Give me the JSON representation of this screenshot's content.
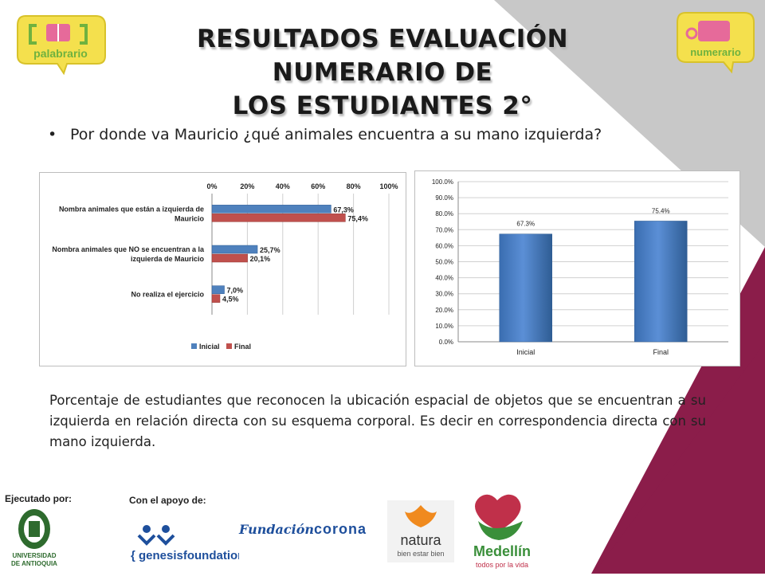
{
  "header": {
    "title_line1": "RESULTADOS EVALUACIÓN NUMERARIO DE",
    "title_line2": "LOS ESTUDIANTES 2°",
    "logo_left_text": "palabrario",
    "logo_right_text": "numerario"
  },
  "bullet": {
    "symbol": "•",
    "text": "Por donde va Mauricio ¿qué animales encuentra a su mano izquierda?"
  },
  "description": "Porcentaje de estudiantes que reconocen la ubicación espacial de objetos que se encuentran a su izquierda en relación directa con su esquema corporal. Es decir en correspondencia directa con su mano izquierda.",
  "footer": {
    "executed_by": "Ejecutado por:",
    "support_by": "Con el apoyo de:",
    "udea_line1": "UNIVERSIDAD",
    "udea_line2": "DE ANTIOQUIA",
    "genesis": "{ genesisfoundation }",
    "fundacion": "Fundación",
    "corona": "corona",
    "natura": "natura",
    "natura_sub": "bien estar bien",
    "medellin": "Medellín",
    "medellin_sub": "todos por la vida"
  },
  "colors": {
    "series_inicial": "#4f81bd",
    "series_final": "#c0504d",
    "bg_gray": "#c8c8c8",
    "bg_maroon": "#8b1d4a"
  },
  "chart_data": [
    {
      "type": "bar",
      "orientation": "horizontal",
      "categories": [
        [
          "Nombra animales que están a izquierda de",
          "Mauricio"
        ],
        [
          "Nombra animales que NO se encuentran a la",
          "izquierda de Mauricio"
        ],
        [
          "No realiza el ejercicio"
        ]
      ],
      "series": [
        {
          "name": "Inicial",
          "values": [
            67.3,
            25.7,
            7.0
          ],
          "labels": [
            "67,3%",
            "25,7%",
            "7,0%"
          ]
        },
        {
          "name": "Final",
          "values": [
            75.4,
            20.1,
            4.5
          ],
          "labels": [
            "75,4%",
            "20,1%",
            "4,5%"
          ]
        }
      ],
      "xlim": [
        0,
        100
      ],
      "ticks": [
        "0%",
        "20%",
        "40%",
        "60%",
        "80%",
        "100%"
      ],
      "grid": true,
      "legend": "bottom"
    },
    {
      "type": "bar",
      "orientation": "vertical",
      "categories": [
        "Inicial",
        "Final"
      ],
      "values": [
        67.3,
        75.4
      ],
      "labels": [
        "67.3%",
        "75.4%"
      ],
      "ylim": [
        0,
        100
      ],
      "ticks": [
        "0.0%",
        "10.0%",
        "20.0%",
        "30.0%",
        "40.0%",
        "50.0%",
        "60.0%",
        "70.0%",
        "80.0%",
        "90.0%",
        "100.0%"
      ],
      "grid": true
    }
  ]
}
